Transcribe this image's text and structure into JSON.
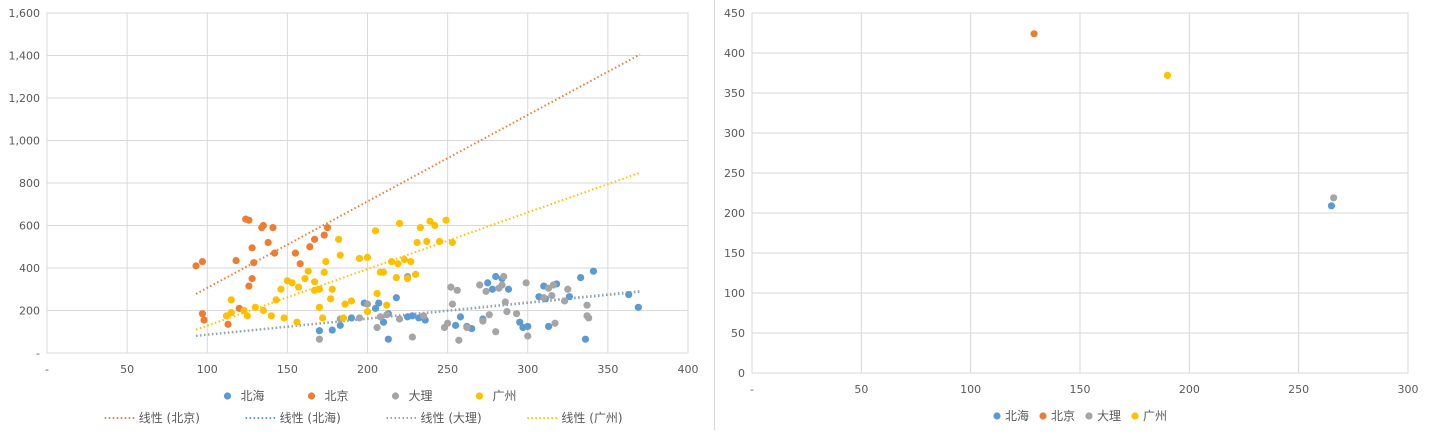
{
  "chart_data": [
    {
      "type": "scatter",
      "title": "",
      "xlabel": "",
      "ylabel": "",
      "xlim": [
        0,
        400
      ],
      "ylim": [
        0,
        1600
      ],
      "x_ticks": [
        0,
        50,
        100,
        150,
        200,
        250,
        300,
        350,
        400
      ],
      "x_tick_labels": [
        "-",
        "50",
        "100",
        "150",
        "200",
        "250",
        "300",
        "350",
        "400"
      ],
      "y_ticks": [
        0,
        200,
        400,
        600,
        800,
        1000,
        1200,
        1400,
        1600
      ],
      "y_tick_labels": [
        "-",
        "200",
        "400",
        "600",
        "800",
        "1,000",
        "1,200",
        "1,400",
        "1,600"
      ],
      "grid": true,
      "legend_position": "bottom",
      "series": [
        {
          "name": "北海",
          "color": "#5b9bd5",
          "points": [
            [
              170,
              105
            ],
            [
              178,
              108
            ],
            [
              183,
              130
            ],
            [
              190,
              165
            ],
            [
              198,
              235
            ],
            [
              205,
              210
            ],
            [
              207,
              235
            ],
            [
              210,
              145
            ],
            [
              213,
              65
            ],
            [
              213,
              185
            ],
            [
              218,
              260
            ],
            [
              225,
              170
            ],
            [
              228,
              175
            ],
            [
              232,
              165
            ],
            [
              236,
              155
            ],
            [
              255,
              130
            ],
            [
              258,
              170
            ],
            [
              262,
              125
            ],
            [
              265,
              115
            ],
            [
              272,
              160
            ],
            [
              275,
              330
            ],
            [
              278,
              300
            ],
            [
              280,
              360
            ],
            [
              284,
              350
            ],
            [
              288,
              300
            ],
            [
              295,
              145
            ],
            [
              297,
              120
            ],
            [
              300,
              125
            ],
            [
              307,
              265
            ],
            [
              310,
              315
            ],
            [
              311,
              255
            ],
            [
              313,
              125
            ],
            [
              318,
              325
            ],
            [
              326,
              265
            ],
            [
              333,
              355
            ],
            [
              336,
              65
            ],
            [
              341,
              385
            ],
            [
              363,
              275
            ],
            [
              369,
              215
            ]
          ]
        },
        {
          "name": "北京",
          "color": "#ed7d31",
          "points": [
            [
              93,
              410
            ],
            [
              97,
              430
            ],
            [
              97,
              185
            ],
            [
              98,
              155
            ],
            [
              113,
              135
            ],
            [
              118,
              435
            ],
            [
              120,
              210
            ],
            [
              124,
              630
            ],
            [
              126,
              625
            ],
            [
              126,
              315
            ],
            [
              128,
              350
            ],
            [
              128,
              495
            ],
            [
              129,
              425
            ],
            [
              134,
              590
            ],
            [
              135,
              600
            ],
            [
              138,
              520
            ],
            [
              141,
              590
            ],
            [
              142,
              470
            ],
            [
              155,
              470
            ],
            [
              158,
              420
            ],
            [
              164,
              500
            ],
            [
              167,
              535
            ],
            [
              173,
              555
            ],
            [
              175,
              590
            ]
          ]
        },
        {
          "name": "大理",
          "color": "#a5a5a5",
          "points": [
            [
              170,
              65
            ],
            [
              183,
              160
            ],
            [
              195,
              165
            ],
            [
              200,
              230
            ],
            [
              206,
              120
            ],
            [
              208,
              170
            ],
            [
              212,
              180
            ],
            [
              220,
              160
            ],
            [
              225,
              360
            ],
            [
              228,
              75
            ],
            [
              235,
              175
            ],
            [
              248,
              120
            ],
            [
              250,
              140
            ],
            [
              252,
              310
            ],
            [
              253,
              230
            ],
            [
              256,
              295
            ],
            [
              257,
              60
            ],
            [
              262,
              120
            ],
            [
              270,
              320
            ],
            [
              272,
              150
            ],
            [
              274,
              290
            ],
            [
              276,
              180
            ],
            [
              280,
              100
            ],
            [
              282,
              305
            ],
            [
              284,
              320
            ],
            [
              285,
              360
            ],
            [
              286,
              240
            ],
            [
              287,
              195
            ],
            [
              293,
              185
            ],
            [
              299,
              330
            ],
            [
              300,
              80
            ],
            [
              310,
              260
            ],
            [
              313,
              305
            ],
            [
              315,
              270
            ],
            [
              316,
              320
            ],
            [
              317,
              140
            ],
            [
              323,
              245
            ],
            [
              325,
              300
            ],
            [
              337,
              175
            ],
            [
              337,
              225
            ],
            [
              338,
              165
            ]
          ]
        },
        {
          "name": "广州",
          "color": "#ffc000",
          "points": [
            [
              112,
              175
            ],
            [
              115,
              250
            ],
            [
              115,
              190
            ],
            [
              123,
              200
            ],
            [
              125,
              175
            ],
            [
              130,
              215
            ],
            [
              135,
              200
            ],
            [
              140,
              175
            ],
            [
              143,
              250
            ],
            [
              146,
              300
            ],
            [
              148,
              165
            ],
            [
              150,
              340
            ],
            [
              153,
              330
            ],
            [
              156,
              145
            ],
            [
              157,
              310
            ],
            [
              161,
              350
            ],
            [
              163,
              385
            ],
            [
              167,
              335
            ],
            [
              167,
              295
            ],
            [
              170,
              300
            ],
            [
              170,
              215
            ],
            [
              172,
              165
            ],
            [
              173,
              380
            ],
            [
              174,
              430
            ],
            [
              177,
              255
            ],
            [
              178,
              300
            ],
            [
              182,
              535
            ],
            [
              183,
              460
            ],
            [
              185,
              165
            ],
            [
              186,
              230
            ],
            [
              190,
              245
            ],
            [
              195,
              445
            ],
            [
              200,
              450
            ],
            [
              200,
              195
            ],
            [
              205,
              575
            ],
            [
              206,
              280
            ],
            [
              208,
              380
            ],
            [
              210,
              380
            ],
            [
              212,
              225
            ],
            [
              215,
              430
            ],
            [
              218,
              355
            ],
            [
              219,
              420
            ],
            [
              220,
              610
            ],
            [
              223,
              440
            ],
            [
              225,
              350
            ],
            [
              227,
              430
            ],
            [
              230,
              370
            ],
            [
              231,
              520
            ],
            [
              233,
              590
            ],
            [
              237,
              525
            ],
            [
              239,
              620
            ],
            [
              242,
              600
            ],
            [
              245,
              525
            ],
            [
              249,
              625
            ],
            [
              253,
              520
            ]
          ]
        }
      ],
      "trendlines": [
        {
          "name": "线性 (北京)",
          "color": "#ed7d31",
          "x": [
            93,
            370
          ],
          "y": [
            278,
            1405
          ]
        },
        {
          "name": "线性 (北海)",
          "color": "#5b9bd5",
          "x": [
            93,
            370
          ],
          "y": [
            80,
            288
          ]
        },
        {
          "name": "线性 (大理)",
          "color": "#a5a5a5",
          "x": [
            93,
            370
          ],
          "y": [
            82,
            292
          ]
        },
        {
          "name": "线性 (广州)",
          "color": "#ffc000",
          "x": [
            93,
            370
          ],
          "y": [
            110,
            848
          ]
        }
      ],
      "legend_rows": [
        [
          {
            "name": "北海",
            "kind": "marker",
            "color": "#5b9bd5"
          },
          {
            "name": "北京",
            "kind": "marker",
            "color": "#ed7d31"
          },
          {
            "name": "大理",
            "kind": "marker",
            "color": "#a5a5a5"
          },
          {
            "name": "广州",
            "kind": "marker",
            "color": "#ffc000"
          }
        ],
        [
          {
            "name": "线性 (北京)",
            "kind": "line",
            "color": "#ed7d31"
          },
          {
            "name": "线性 (北海)",
            "kind": "line",
            "color": "#5b9bd5"
          },
          {
            "name": "线性 (大理)",
            "kind": "line",
            "color": "#a5a5a5"
          },
          {
            "name": "线性 (广州)",
            "kind": "line",
            "color": "#ffc000"
          }
        ]
      ]
    },
    {
      "type": "scatter",
      "title": "",
      "xlabel": "",
      "ylabel": "",
      "xlim": [
        0,
        300
      ],
      "ylim": [
        0,
        450
      ],
      "x_ticks": [
        0,
        50,
        100,
        150,
        200,
        250,
        300
      ],
      "x_tick_labels": [
        "-",
        "50",
        "100",
        "150",
        "200",
        "250",
        "300"
      ],
      "y_ticks": [
        0,
        50,
        100,
        150,
        200,
        250,
        300,
        350,
        400,
        450
      ],
      "y_tick_labels": [
        "0",
        "50",
        "100",
        "150",
        "200",
        "250",
        "300",
        "350",
        "400",
        "450"
      ],
      "grid": true,
      "legend_position": "bottom",
      "series": [
        {
          "name": "北海",
          "color": "#5b9bd5",
          "points": [
            [
              265,
              209
            ]
          ]
        },
        {
          "name": "北京",
          "color": "#ed7d31",
          "points": [
            [
              129,
              424
            ]
          ]
        },
        {
          "name": "大理",
          "color": "#a5a5a5",
          "points": [
            [
              266,
              219
            ]
          ]
        },
        {
          "name": "广州",
          "color": "#ffc000",
          "points": [
            [
              190,
              372
            ]
          ]
        }
      ],
      "legend_rows": [
        [
          {
            "name": "北海",
            "kind": "marker",
            "color": "#5b9bd5"
          },
          {
            "name": "北京",
            "kind": "marker",
            "color": "#ed7d31"
          },
          {
            "name": "大理",
            "kind": "marker",
            "color": "#a5a5a5"
          },
          {
            "name": "广州",
            "kind": "marker",
            "color": "#ffc000"
          }
        ]
      ]
    }
  ]
}
